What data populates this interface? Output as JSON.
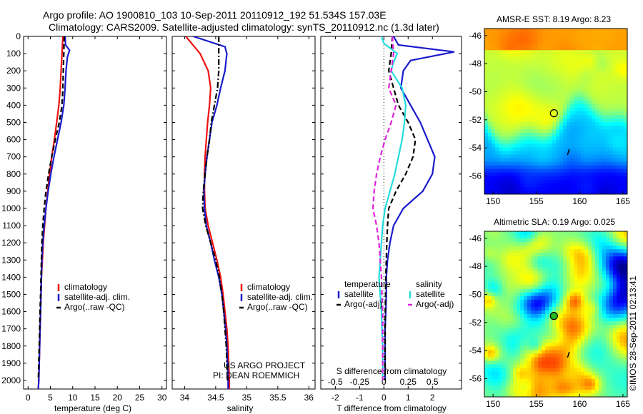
{
  "header": {
    "title_line1": "Argo profile: AO 1900810_103 10-Sep-2011 20110912_192 51.534S 157.03E",
    "title_line2": "Climatology: CARS2009. Satellite-adjusted climatology: synTS_20110912.nc (1.3d later)"
  },
  "colors": {
    "climatology": "#ee1111",
    "satellite": "#1a1acc",
    "argo": "#000000",
    "sat_salinity": "#22dddd",
    "argo_salinity": "#dd22dd"
  },
  "credit": {
    "line1": "US ARGO PROJECT",
    "line2": "PI: DEAN ROEMMICH"
  },
  "watermark": "©IMOS 28-Sep-2011 02:13:41",
  "chart_data": [
    {
      "id": "temperature",
      "type": "line",
      "xlabel": "temperature (deg C)",
      "xlim": [
        -1,
        31
      ],
      "xticks": [
        0,
        5,
        10,
        15,
        20,
        25,
        30
      ],
      "ylim": [
        2050,
        0
      ],
      "yticks": [
        0,
        100,
        200,
        300,
        400,
        500,
        600,
        700,
        800,
        900,
        1000,
        1100,
        1200,
        1300,
        1400,
        1500,
        1600,
        1700,
        1800,
        1900,
        2000
      ],
      "legend": [
        "climatology",
        "satellite-adj. clim.",
        "Argo(..raw -QC)"
      ],
      "series": [
        {
          "name": "climatology",
          "style": "solid",
          "depth": [
            0,
            100,
            200,
            300,
            400,
            500,
            600,
            700,
            800,
            900,
            1000,
            1100,
            1200,
            1300,
            1400,
            1500,
            1600,
            1700,
            1800,
            1900,
            2000,
            2050
          ],
          "values": [
            7.8,
            7.6,
            7.4,
            7.2,
            6.9,
            6.4,
            5.9,
            5.3,
            4.8,
            4.4,
            4.0,
            3.7,
            3.4,
            3.2,
            3.0,
            2.9,
            2.8,
            2.7,
            2.6,
            2.5,
            2.4,
            2.3
          ]
        },
        {
          "name": "satellite-adj. clim.",
          "style": "solid",
          "depth": [
            0,
            50,
            80,
            120,
            200,
            300,
            400,
            500,
            600,
            700,
            800,
            900,
            1000,
            1100,
            1200,
            1300,
            1400,
            1500,
            1600,
            1700,
            1800,
            1900,
            2000,
            2050
          ],
          "values": [
            8.3,
            8.4,
            9.3,
            8.8,
            8.5,
            8.3,
            8.0,
            7.4,
            6.6,
            5.8,
            5.1,
            4.5,
            4.0,
            3.6,
            3.3,
            3.1,
            3.0,
            2.9,
            2.8,
            2.7,
            2.6,
            2.5,
            2.4,
            2.3
          ]
        },
        {
          "name": "Argo(..raw -QC)",
          "style": "dashed",
          "depth": [
            0,
            100,
            200,
            300,
            400,
            500,
            600,
            700,
            800,
            900,
            1000,
            1100,
            1200,
            1300,
            1400,
            1500,
            1600,
            1700,
            1800,
            1900,
            2000
          ],
          "values": [
            8.1,
            8.0,
            7.9,
            7.8,
            7.6,
            7.0,
            6.1,
            5.3,
            4.6,
            4.0,
            3.6,
            3.3,
            3.1,
            3.0,
            2.9,
            2.8,
            2.7,
            2.6,
            2.5,
            2.4,
            2.3
          ]
        }
      ]
    },
    {
      "id": "salinity",
      "type": "line",
      "xlabel": "salinity",
      "xlim": [
        33.8,
        36.1
      ],
      "xticks": [
        34,
        34.5,
        35,
        35.5,
        36
      ],
      "ylim": [
        2050,
        0
      ],
      "legend": [
        "climatology",
        "satellite-adj. clim.",
        "Argo(..raw -QC)"
      ],
      "series": [
        {
          "name": "climatology",
          "style": "solid",
          "depth": [
            0,
            100,
            200,
            300,
            400,
            500,
            600,
            700,
            800,
            900,
            1000,
            1100,
            1200,
            1300,
            1400,
            1500,
            1600,
            1700,
            1800,
            1900,
            2000,
            2050
          ],
          "values": [
            34.02,
            34.25,
            34.38,
            34.42,
            34.4,
            34.37,
            34.35,
            34.33,
            34.32,
            34.32,
            34.33,
            34.38,
            34.45,
            34.52,
            34.58,
            34.62,
            34.65,
            34.68,
            34.7,
            34.71,
            34.72,
            34.72
          ]
        },
        {
          "name": "satellite-adj. clim.",
          "style": "solid",
          "depth": [
            0,
            60,
            100,
            200,
            300,
            400,
            500,
            600,
            700,
            800,
            900,
            1000,
            1100,
            1200,
            1300,
            1400,
            1500,
            1600,
            1700,
            1800,
            1900,
            2000,
            2050
          ],
          "values": [
            34.14,
            34.65,
            34.68,
            34.65,
            34.58,
            34.52,
            34.44,
            34.4,
            34.36,
            34.33,
            34.31,
            34.32,
            34.35,
            34.42,
            34.48,
            34.55,
            34.6,
            34.63,
            34.66,
            34.68,
            34.69,
            34.7,
            34.7
          ]
        },
        {
          "name": "Argo(..raw -QC)",
          "style": "dashdot",
          "depth": [
            0,
            100,
            200,
            300,
            400,
            500,
            600,
            700,
            800,
            900,
            1000,
            1100,
            1200,
            1300,
            1400,
            1500,
            1600,
            1700,
            1800,
            1900,
            2000
          ],
          "values": [
            34.55,
            34.55,
            34.55,
            34.53,
            34.48,
            34.43,
            34.4,
            34.36,
            34.33,
            34.3,
            34.29,
            34.34,
            34.42,
            34.5,
            34.56,
            34.6,
            34.63,
            34.65,
            34.67,
            34.68,
            34.69
          ]
        }
      ]
    },
    {
      "id": "differences",
      "type": "line",
      "xlabel": "T difference from climatology",
      "xlabel_top": "S difference from climatology",
      "xlim": [
        -2.6,
        3.2
      ],
      "xticks": [
        -2,
        -1,
        0,
        1,
        2
      ],
      "xticks_s": [
        "-0.5",
        "-0.25",
        "0",
        "0.25",
        "0.5"
      ],
      "ylim": [
        2050,
        0
      ],
      "legend_temperature": [
        "temperature",
        "satellite",
        "Argo(-adj)"
      ],
      "legend_salinity": [
        "salinity",
        "satellite",
        "Argo(-adj)"
      ],
      "series": [
        {
          "name": "temperature satellite",
          "style": "solid",
          "depth": [
            0,
            50,
            90,
            140,
            200,
            300,
            400,
            500,
            600,
            700,
            800,
            900,
            1000,
            1100,
            1200,
            1300,
            1400,
            1500,
            1600,
            1700,
            1800,
            1900,
            2000
          ],
          "values": [
            0.4,
            0.6,
            2.9,
            1.1,
            0.8,
            0.7,
            1.1,
            1.5,
            1.8,
            2.1,
            2.0,
            1.6,
            0.8,
            0.4,
            0.25,
            0.15,
            0.1,
            0.1,
            0.08,
            0.05,
            0.05,
            0.05,
            0.05
          ]
        },
        {
          "name": "temperature Argo(-adj)",
          "style": "dashed",
          "depth": [
            0,
            100,
            200,
            300,
            400,
            500,
            600,
            700,
            800,
            900,
            1000,
            1100,
            1200,
            1300,
            1400,
            1500,
            1600,
            1700,
            1800,
            1900,
            2000
          ],
          "values": [
            0.35,
            0.3,
            0.2,
            0.4,
            0.6,
            1.0,
            1.3,
            1.2,
            0.9,
            0.5,
            0.2,
            0.15,
            0.12,
            0.1,
            0.08,
            0.07,
            0.06,
            0.05,
            0.05,
            0.05,
            0.05
          ]
        },
        {
          "name": "salinity satellite",
          "style": "solid",
          "depth": [
            0,
            40,
            100,
            150,
            200,
            300,
            400,
            500,
            600,
            700,
            800,
            900,
            1000,
            1100,
            1200,
            1300,
            1400,
            1500,
            1600,
            1700,
            1800,
            1900,
            2000
          ],
          "values": [
            -0.1,
            0.0,
            0.55,
            0.4,
            0.3,
            0.75,
            0.9,
            0.85,
            0.75,
            0.6,
            0.45,
            0.25,
            0.05,
            -0.05,
            -0.1,
            -0.15,
            -0.2,
            -0.15,
            -0.1,
            -0.08,
            -0.05,
            -0.05,
            -0.05
          ]
        },
        {
          "name": "salinity Argo(-adj)",
          "style": "dashed",
          "depth": [
            0,
            100,
            200,
            300,
            400,
            500,
            600,
            700,
            800,
            900,
            1000,
            1100,
            1200,
            1300,
            1400,
            1500,
            1600,
            1700,
            1800,
            1900,
            2000
          ],
          "values": [
            0.35,
            0.4,
            0.3,
            0.2,
            0.5,
            0.3,
            0.05,
            -0.15,
            -0.3,
            -0.4,
            -0.45,
            -0.3,
            -0.2,
            -0.15,
            -0.1,
            -0.08,
            -0.05,
            -0.05,
            -0.05,
            -0.05,
            -0.05
          ]
        }
      ]
    },
    {
      "id": "sst_map",
      "type": "heatmap",
      "title": "AMSR-E SST: 8.19 Argo: 8.23",
      "xlim": [
        149,
        165.5
      ],
      "ylim": [
        -57.3,
        -45.5
      ],
      "xticks": [
        150,
        155,
        160,
        165
      ],
      "yticks": [
        -46,
        -48,
        -50,
        -52,
        -54,
        -56
      ],
      "marker": {
        "lon": 157.03,
        "lat": -51.534,
        "fill": "none"
      }
    },
    {
      "id": "sla_map",
      "type": "heatmap",
      "title": "Altimetric SLA: 0.19 Argo: 0.025",
      "xlim": [
        149,
        165.5
      ],
      "ylim": [
        -57.3,
        -45.5
      ],
      "xticks": [
        150,
        155,
        160,
        165
      ],
      "yticks": [
        -46,
        -48,
        -50,
        -52,
        -54,
        -56
      ],
      "marker": {
        "lon": 157.03,
        "lat": -51.534,
        "fill": "#22bb22"
      }
    }
  ]
}
